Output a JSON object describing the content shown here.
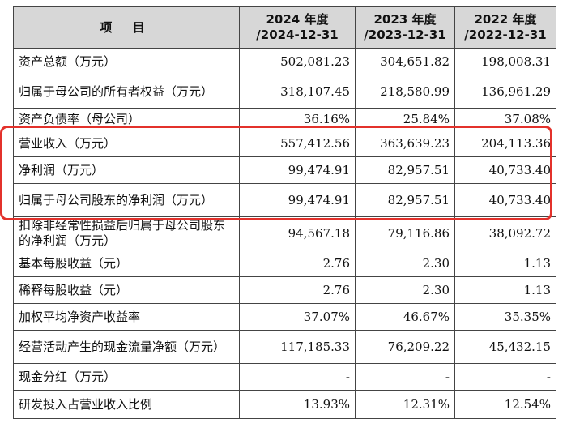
{
  "table": {
    "headers": [
      {
        "line1": "项 目",
        "line2": ""
      },
      {
        "line1": "2024 年度",
        "line2": "/2024-12-31"
      },
      {
        "line1": "2023 年度",
        "line2": "/2023-12-31"
      },
      {
        "line1": "2022 年度",
        "line2": "/2022-12-31"
      }
    ],
    "rows": [
      {
        "label": "资产总额（万元）",
        "v2024": "502,081.23",
        "v2023": "304,651.82",
        "v2022": "198,008.31"
      },
      {
        "label": "归属于母公司的所有者权益（万元）",
        "v2024": "318,107.45",
        "v2023": "218,580.99",
        "v2022": "136,961.29"
      },
      {
        "label": "资产负债率（母公司）",
        "v2024": "36.16%",
        "v2023": "25.84%",
        "v2022": "37.08%"
      },
      {
        "label": "营业收入（万元）",
        "v2024": "557,412.56",
        "v2023": "363,639.23",
        "v2022": "204,113.36"
      },
      {
        "label": "净利润（万元）",
        "v2024": "99,474.91",
        "v2023": "82,957.51",
        "v2022": "40,733.40"
      },
      {
        "label": "归属于母公司股东的净利润（万元）",
        "v2024": "99,474.91",
        "v2023": "82,957.51",
        "v2022": "40,733.40"
      },
      {
        "label": "扣除非经常性损益后归属于母公司股东的净利润（万元）",
        "v2024": "94,567.18",
        "v2023": "79,116.86",
        "v2022": "38,092.72"
      },
      {
        "label": "基本每股收益（元）",
        "v2024": "2.76",
        "v2023": "2.30",
        "v2022": "1.13"
      },
      {
        "label": "稀释每股收益（元）",
        "v2024": "2.76",
        "v2023": "2.30",
        "v2022": "1.13"
      },
      {
        "label": "加权平均净资产收益率",
        "v2024": "37.07%",
        "v2023": "46.67%",
        "v2022": "35.35%"
      },
      {
        "label": "经营活动产生的现金流量净额（万元）",
        "v2024": "117,185.33",
        "v2023": "76,209.22",
        "v2022": "45,432.15"
      },
      {
        "label": "现金分红（万元）",
        "v2024": "-",
        "v2023": "-",
        "v2022": "-"
      },
      {
        "label": "研发投入占营业收入比例",
        "v2024": "13.93%",
        "v2023": "12.31%",
        "v2022": "12.54%"
      }
    ]
  },
  "highlight_color": "#e3312b",
  "header_bg": "#d7d7d7"
}
